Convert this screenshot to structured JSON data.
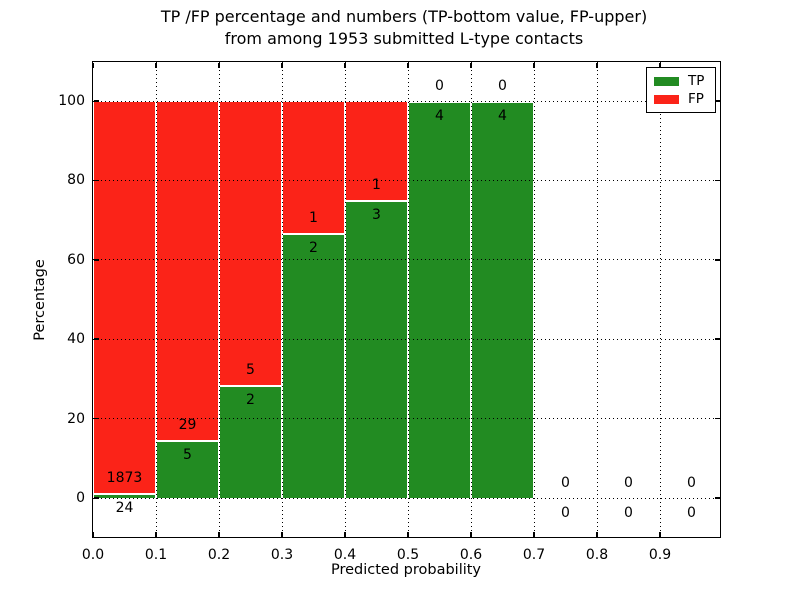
{
  "title": {
    "line1": "TP /FP percentage and numbers (TP-bottom value, FP-upper)",
    "line2": "from among 1953 submitted L-type contacts"
  },
  "chart_data": {
    "type": "bar",
    "stacked": true,
    "title": "TP /FP percentage and numbers (TP-bottom value, FP-upper) from among 1953 submitted L-type contacts",
    "xlabel": "Predicted probability",
    "ylabel": "Percentage",
    "xlim": [
      0.0,
      1.0
    ],
    "ylim": [
      -10,
      110
    ],
    "xticks": [
      "0.0",
      "0.1",
      "0.2",
      "0.3",
      "0.4",
      "0.5",
      "0.6",
      "0.7",
      "0.8",
      "0.9"
    ],
    "yticks": [
      0,
      20,
      40,
      60,
      80,
      100
    ],
    "grid": "dotted both axes",
    "total_submitted": 1953,
    "annotation_rule": "TP count below segment boundary, FP count above segment boundary",
    "legend": {
      "position": "upper right",
      "entries": [
        {
          "label": "TP",
          "color": "#228b22"
        },
        {
          "label": "FP",
          "color": "#fb2318"
        }
      ]
    },
    "bins": [
      {
        "x0": 0.0,
        "x1": 0.1,
        "tp": 24,
        "fp": 1873
      },
      {
        "x0": 0.1,
        "x1": 0.2,
        "tp": 5,
        "fp": 29
      },
      {
        "x0": 0.2,
        "x1": 0.3,
        "tp": 2,
        "fp": 5
      },
      {
        "x0": 0.3,
        "x1": 0.4,
        "tp": 2,
        "fp": 1
      },
      {
        "x0": 0.4,
        "x1": 0.5,
        "tp": 3,
        "fp": 1
      },
      {
        "x0": 0.5,
        "x1": 0.6,
        "tp": 4,
        "fp": 0
      },
      {
        "x0": 0.6,
        "x1": 0.7,
        "tp": 4,
        "fp": 0
      },
      {
        "x0": 0.7,
        "x1": 0.8,
        "tp": 0,
        "fp": 0
      },
      {
        "x0": 0.8,
        "x1": 0.9,
        "tp": 0,
        "fp": 0
      },
      {
        "x0": 0.9,
        "x1": 1.0,
        "tp": 0,
        "fp": 0
      }
    ],
    "colors": {
      "tp": "#228b22",
      "fp": "#fb2318",
      "bar_edge": "#ffffff",
      "grid": "#000000",
      "background": "#ffffff",
      "text": "#000000"
    }
  }
}
